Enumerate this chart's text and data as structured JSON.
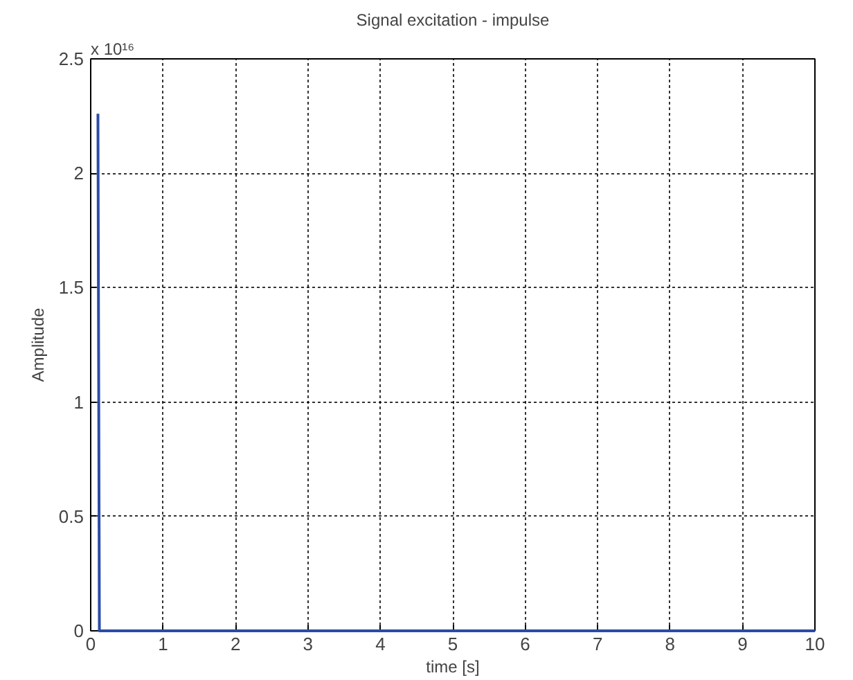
{
  "chart_data": {
    "type": "line",
    "title": "Signal excitation - impulse",
    "xlabel": "time [s]",
    "ylabel": "Amplitude",
    "annotations": [
      "x 10¹⁶"
    ],
    "x": [
      0.1,
      0.12,
      10
    ],
    "series": [
      {
        "color": "#2b4ba8",
        "values": [
          2.26,
          0,
          0
        ]
      }
    ],
    "xlim": [
      0,
      10
    ],
    "xticks": [
      0,
      1,
      2,
      3,
      4,
      5,
      6,
      7,
      8,
      9,
      10
    ],
    "ylim": [
      0,
      2.5
    ],
    "yticks": [
      0,
      0.5,
      1,
      1.5,
      2,
      2.5
    ],
    "grid": true,
    "marker": "none",
    "line_style": "solid"
  }
}
